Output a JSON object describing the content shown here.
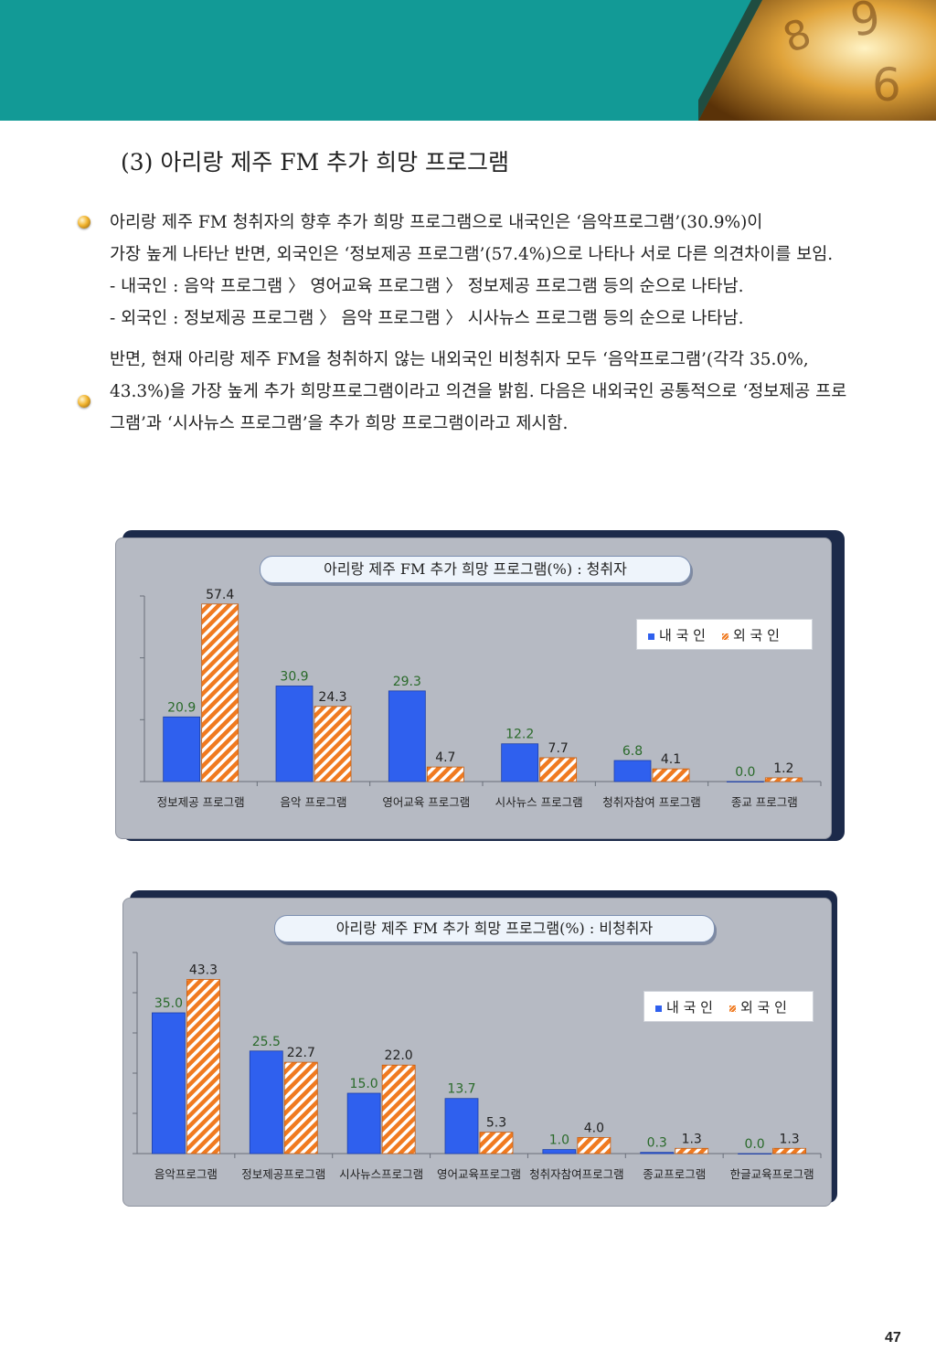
{
  "section_title": "(3) 아리랑 제주 FM 추가 희망 프로그램",
  "paragraphs": [
    "아리랑 제주 FM 청취자의 향후 추가 희망 프로그램으로 내국인은 ‘음악프로그램’(30.9%)이",
    "가장 높게 나타난 반면, 외국인은 ‘정보제공 프로그램’(57.4%)으로 나타나 서로 다른 의견차이를 보임.",
    "- 내국인 : 음악 프로그램 〉 영어교육 프로그램 〉 정보제공 프로그램 등의 순으로 나타남.",
    "- 외국인 : 정보제공 프로그램 〉 음악 프로그램 〉 시사뉴스 프로그램 등의 순으로 나타남.",
    "반면, 현재 아리랑 제주 FM을 청취하지 않는 내외국인 비청취자 모두 ‘음악프로그램’(각각 35.0%, 43.3%)을 가장 높게 추가 희망프로그램이라고 의견을 밝힘. 다음은 내외국인 공통적으로 ‘정보제공 프로그램’과 ‘시사뉴스 프로그램’을 추가 희망 프로그램이라고 제시함."
  ],
  "legend": {
    "domestic": "내 국 인",
    "foreign": "외 국 인"
  },
  "colors": {
    "domestic": "#2f60ee",
    "foreign": "#f07a20",
    "header": "#129a96",
    "value_label": "#2a6a2a"
  },
  "page_number": "47",
  "chart_data": [
    {
      "type": "bar",
      "title": "아리랑 제주 FM 추가 희망 프로그램(%) : 청취자",
      "categories": [
        "정보제공 프로그램",
        "음악 프로그램",
        "영어교육 프로그램",
        "시사뉴스 프로그램",
        "청취자참여 프로그램",
        "종교 프로그램"
      ],
      "series": [
        {
          "name": "내 국 인",
          "values": [
            20.9,
            30.9,
            29.3,
            12.2,
            6.8,
            0.0
          ]
        },
        {
          "name": "외 국 인",
          "values": [
            57.4,
            24.3,
            4.7,
            7.7,
            4.1,
            1.2
          ]
        }
      ],
      "ylim": [
        0,
        60
      ],
      "labels": {
        "domestic": [
          "20.9",
          "30.9",
          "29.3",
          "12.2",
          "6.8",
          "0.0"
        ],
        "foreign": [
          "57.4",
          "24.3",
          "4.7",
          "7.7",
          "4.1",
          "1.2"
        ]
      },
      "legend_position": "top-right"
    },
    {
      "type": "bar",
      "title": "아리랑 제주 FM 추가 희망 프로그램(%) : 비청취자",
      "categories": [
        "음악프로그램",
        "정보제공프로그램",
        "시사뉴스프로그램",
        "영어교육프로그램",
        "청취자참여프로그램",
        "종교프로그램",
        "한글교육프로그램"
      ],
      "series": [
        {
          "name": "내 국 인",
          "values": [
            35.0,
            25.5,
            15.0,
            13.7,
            1.0,
            0.3,
            0.0
          ]
        },
        {
          "name": "외 국 인",
          "values": [
            43.3,
            22.7,
            22.0,
            5.3,
            4.0,
            1.3,
            1.3
          ]
        }
      ],
      "ylim": [
        0,
        50
      ],
      "labels": {
        "domestic": [
          "35.0",
          "25.5",
          "15.0",
          "13.7",
          "1.0",
          "0.3",
          "0.0"
        ],
        "foreign": [
          "43.3",
          "22.7",
          "22.0",
          "5.3",
          "4.0",
          "1.3",
          "1.3"
        ]
      },
      "legend_position": "top-right"
    }
  ]
}
